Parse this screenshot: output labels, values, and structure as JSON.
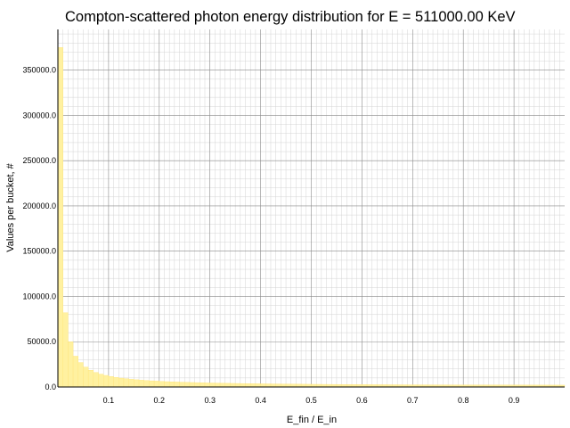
{
  "chart_data": {
    "type": "bar",
    "title": "Compton-scattered photon energy distribution for E = 511000.00 KeV",
    "xlabel": "E_fin / E_in",
    "ylabel": "Values per bucket, #",
    "xlim": [
      0.0,
      1.0
    ],
    "ylim": [
      0,
      395000
    ],
    "grid": true,
    "x_ticks": [
      0.1,
      0.2,
      0.3,
      0.4,
      0.5,
      0.6,
      0.7,
      0.8,
      0.9
    ],
    "x_tick_labels": [
      "0.1",
      "0.2",
      "0.3",
      "0.4",
      "0.5",
      "0.6",
      "0.7",
      "0.8",
      "0.9"
    ],
    "y_ticks": [
      0,
      50000,
      100000,
      150000,
      200000,
      250000,
      300000,
      350000
    ],
    "y_tick_labels": [
      "0.0",
      "50000.0",
      "100000.0",
      "150000.0",
      "200000.0",
      "250000.0",
      "300000.0",
      "350000.0"
    ],
    "bin_width": 0.01,
    "bin_start": 0.0,
    "values": [
      375000,
      82000,
      50000,
      34000,
      27000,
      22000,
      18500,
      16000,
      14200,
      12800,
      11600,
      10600,
      9800,
      9100,
      8500,
      8000,
      7500,
      7100,
      6800,
      6500,
      6200,
      5900,
      5700,
      5500,
      5300,
      5100,
      4950,
      4800,
      4650,
      4500,
      4400,
      4280,
      4170,
      4070,
      3970,
      3880,
      3800,
      3720,
      3640,
      3570,
      3500,
      3430,
      3370,
      3310,
      3250,
      3200,
      3150,
      3100,
      3050,
      3000,
      2960,
      2920,
      2880,
      2840,
      2800,
      2760,
      2730,
      2700,
      2670,
      2640,
      2610,
      2580,
      2550,
      2530,
      2500,
      2480,
      2460,
      2440,
      2420,
      2400,
      2380,
      2360,
      2340,
      2320,
      2300,
      2290,
      2280,
      2270,
      2260,
      2250,
      2240,
      2230,
      2220,
      2210,
      2200,
      2190,
      2180,
      2170,
      2160,
      2150,
      2140,
      2130,
      2120,
      2110,
      2100,
      2090,
      2080,
      2070,
      2060,
      2050
    ],
    "colors": {
      "bar_fill": "#fff1a0",
      "bar_edge": "#ffe47a"
    }
  }
}
